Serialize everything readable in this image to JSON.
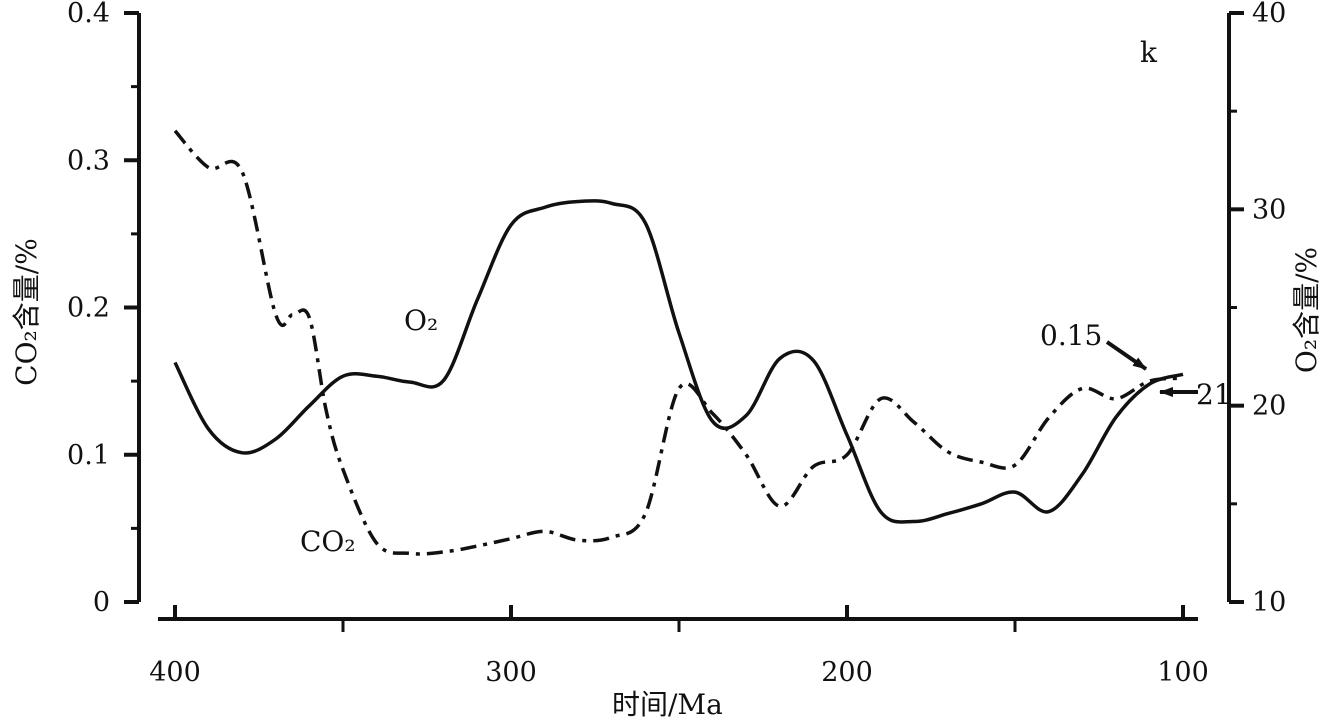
{
  "chart_data": {
    "type": "line",
    "panel_label": "k",
    "xlabel": "时间/Ma",
    "ylabel_left": "CO₂含量/%",
    "ylabel_right": "O₂含量/%",
    "x_ticks": [
      400,
      300,
      200,
      100
    ],
    "xlim": [
      400,
      100
    ],
    "ylim_left": [
      0,
      0.4
    ],
    "ylim_right": [
      10,
      40
    ],
    "left_ticks": [
      "0",
      "0.1",
      "0.2",
      "0.3",
      "0.4"
    ],
    "right_ticks": [
      "10",
      "20",
      "30",
      "40"
    ],
    "grid": false,
    "series": [
      {
        "name": "O₂",
        "axis": "right",
        "style": "solid",
        "x": [
          400,
          390,
          380,
          370,
          360,
          350,
          340,
          330,
          320,
          310,
          300,
          290,
          280,
          270,
          260,
          250,
          240,
          230,
          220,
          210,
          200,
          190,
          180,
          170,
          160,
          150,
          140,
          130,
          120,
          110,
          100
        ],
        "y": [
          22.2,
          18.8,
          17.6,
          18.3,
          20.0,
          21.5,
          21.5,
          21.2,
          21.3,
          25.4,
          29.2,
          30.1,
          30.4,
          30.3,
          29.3,
          23.7,
          19.2,
          19.5,
          22.4,
          22.3,
          18.5,
          14.6,
          14.1,
          14.5,
          15.0,
          15.6,
          14.6,
          16.5,
          19.4,
          21.1,
          21.6
        ]
      },
      {
        "name": "CO₂",
        "axis": "left",
        "style": "dashdot",
        "x": [
          400,
          390,
          380,
          370,
          365,
          360,
          355,
          350,
          340,
          330,
          320,
          310,
          300,
          290,
          280,
          270,
          260,
          250,
          240,
          230,
          220,
          210,
          200,
          190,
          180,
          170,
          160,
          150,
          140,
          130,
          120,
          110,
          100
        ],
        "y": [
          0.32,
          0.295,
          0.292,
          0.195,
          0.195,
          0.193,
          0.13,
          0.09,
          0.04,
          0.033,
          0.034,
          0.038,
          0.043,
          0.048,
          0.042,
          0.044,
          0.06,
          0.145,
          0.128,
          0.1,
          0.065,
          0.092,
          0.1,
          0.138,
          0.122,
          0.102,
          0.095,
          0.093,
          0.125,
          0.145,
          0.138,
          0.15,
          0.152
        ]
      }
    ],
    "annotations": [
      {
        "text": "0.15",
        "target_x": 110,
        "target_y": 0.15,
        "axis": "left"
      },
      {
        "text": "21",
        "target_x": 110,
        "target_y": 21,
        "axis": "right"
      }
    ]
  }
}
